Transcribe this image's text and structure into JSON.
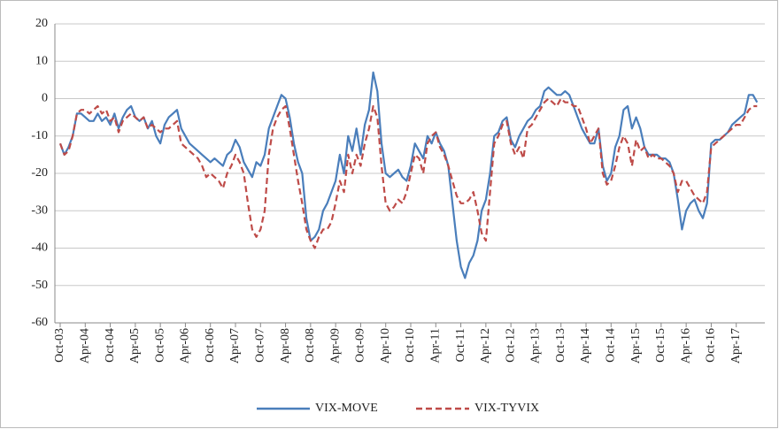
{
  "chart_data": {
    "type": "line",
    "categories": [
      "Oct-03",
      null,
      null,
      null,
      null,
      null,
      "Apr-04",
      null,
      null,
      null,
      null,
      null,
      "Oct-04",
      null,
      null,
      null,
      null,
      null,
      "Apr-05",
      null,
      null,
      null,
      null,
      null,
      "Oct-05",
      null,
      null,
      null,
      null,
      null,
      "Apr-06",
      null,
      null,
      null,
      null,
      null,
      "Oct-06",
      null,
      null,
      null,
      null,
      null,
      "Apr-07",
      null,
      null,
      null,
      null,
      null,
      "Oct-07",
      null,
      null,
      null,
      null,
      null,
      "Apr-08",
      null,
      null,
      null,
      null,
      null,
      "Oct-08",
      null,
      null,
      null,
      null,
      null,
      "Apr-09",
      null,
      null,
      null,
      null,
      null,
      "Oct-09",
      null,
      null,
      null,
      null,
      null,
      "Apr-10",
      null,
      null,
      null,
      null,
      null,
      "Oct-10",
      null,
      null,
      null,
      null,
      null,
      "Apr-11",
      null,
      null,
      null,
      null,
      null,
      "Oct-11",
      null,
      null,
      null,
      null,
      null,
      "Apr-12",
      null,
      null,
      null,
      null,
      null,
      "Oct-12",
      null,
      null,
      null,
      null,
      null,
      "Apr-13",
      null,
      null,
      null,
      null,
      null,
      "Oct-13",
      null,
      null,
      null,
      null,
      null,
      "Apr-14",
      null,
      null,
      null,
      null,
      null,
      "Oct-14",
      null,
      null,
      null,
      null,
      null,
      "Apr-15",
      null,
      null,
      null,
      null,
      null,
      "Oct-15",
      null,
      null,
      null,
      null,
      null,
      "Apr-16",
      null,
      null,
      null,
      null,
      null,
      "Oct-16",
      null,
      null,
      null,
      null,
      null,
      "Apr-17",
      null,
      null,
      null,
      null,
      null
    ],
    "series": [
      {
        "name": "VIX-MOVE",
        "color": "#4a7ebb",
        "dash": false,
        "values": [
          -12,
          -15,
          -13,
          -10,
          -4,
          -4,
          -5,
          -6,
          -6,
          -4,
          -6,
          -5,
          -7,
          -4,
          -8,
          -5,
          -3,
          -2,
          -5,
          -6,
          -5,
          -8,
          -6,
          -10,
          -12,
          -7,
          -5,
          -4,
          -3,
          -8,
          -10,
          -12,
          -13,
          -14,
          -15,
          -16,
          -17,
          -16,
          -17,
          -18,
          -15,
          -14,
          -11,
          -13,
          -17,
          -19,
          -21,
          -17,
          -18,
          -15,
          -8,
          -5,
          -2,
          1,
          0,
          -5,
          -12,
          -17,
          -20,
          -32,
          -38,
          -37,
          -35,
          -30,
          -28,
          -25,
          -22,
          -15,
          -20,
          -10,
          -14,
          -8,
          -15,
          -7,
          -3,
          7,
          2,
          -12,
          -20,
          -21,
          -20,
          -19,
          -21,
          -22,
          -18,
          -12,
          -14,
          -16,
          -10,
          -12,
          -9,
          -12,
          -14,
          -18,
          -28,
          -38,
          -45,
          -48,
          -44,
          -42,
          -38,
          -30,
          -27,
          -20,
          -10,
          -9,
          -6,
          -5,
          -11,
          -13,
          -10,
          -8,
          -6,
          -5,
          -3,
          -2,
          2,
          3,
          2,
          1,
          1,
          2,
          1,
          -2,
          -5,
          -8,
          -10,
          -12,
          -12,
          -8,
          -18,
          -22,
          -20,
          -13,
          -10,
          -3,
          -2,
          -8,
          -5,
          -8,
          -13,
          -15,
          -15,
          -15,
          -16,
          -16,
          -17,
          -20,
          -27,
          -35,
          -30,
          -28,
          -27,
          -30,
          -32,
          -28,
          -12,
          -11,
          -11,
          -10,
          -9,
          -7,
          -6,
          -5,
          -4,
          1,
          1,
          -1
        ]
      },
      {
        "name": "VIX-TYVIX",
        "color": "#be4b48",
        "dash": true,
        "values": [
          -12,
          -15,
          -14,
          -10,
          -4,
          -3,
          -3,
          -4,
          -3,
          -2,
          -4,
          -3,
          -6,
          -5,
          -9,
          -6,
          -5,
          -4,
          -5,
          -6,
          -5,
          -8,
          -7,
          -8,
          -9,
          -8,
          -8,
          -7,
          -6,
          -12,
          -13,
          -14,
          -15,
          -16,
          -18,
          -21,
          -20,
          -21,
          -22,
          -24,
          -20,
          -18,
          -15,
          -17,
          -20,
          -28,
          -35,
          -37,
          -35,
          -30,
          -15,
          -8,
          -5,
          -3,
          -2,
          -8,
          -15,
          -22,
          -28,
          -35,
          -38,
          -40,
          -37,
          -35,
          -35,
          -33,
          -28,
          -22,
          -25,
          -15,
          -20,
          -15,
          -18,
          -12,
          -8,
          -2,
          -5,
          -18,
          -28,
          -30,
          -29,
          -27,
          -28,
          -25,
          -20,
          -15,
          -16,
          -20,
          -12,
          -10,
          -9,
          -13,
          -15,
          -18,
          -22,
          -26,
          -28,
          -28,
          -27,
          -25,
          -30,
          -36,
          -38,
          -25,
          -12,
          -10,
          -7,
          -6,
          -12,
          -15,
          -13,
          -16,
          -8,
          -7,
          -5,
          -3,
          -1,
          0,
          -1,
          -2,
          0,
          -1,
          -1,
          -2,
          -2,
          -5,
          -8,
          -12,
          -10,
          -8,
          -20,
          -23,
          -22,
          -18,
          -13,
          -10,
          -12,
          -18,
          -11,
          -14,
          -13,
          -16,
          -15,
          -16,
          -16,
          -17,
          -18,
          -20,
          -25,
          -22,
          -22,
          -24,
          -26,
          -27,
          -28,
          -25,
          -13,
          -12,
          -11,
          -10,
          -9,
          -8,
          -7,
          -7,
          -5,
          -3,
          -2,
          -2
        ]
      }
    ],
    "ylim": [
      -60,
      20
    ],
    "yticks": [
      -60,
      -50,
      -40,
      -30,
      -20,
      -10,
      0,
      10,
      20
    ],
    "grid": true,
    "legend": "bottom"
  }
}
